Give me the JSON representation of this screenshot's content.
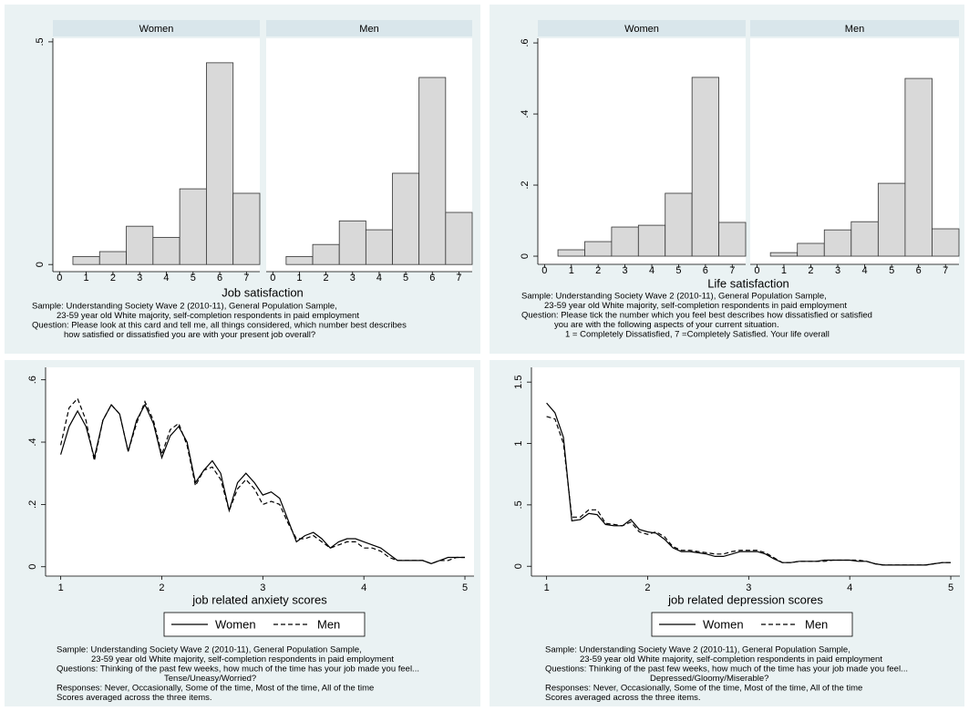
{
  "chart_data": [
    {
      "type": "histogram",
      "xlabel": "Job satisfaction",
      "bins": [
        0.5,
        1.5,
        2.5,
        3.5,
        4.5,
        5.5,
        6.5,
        7.5
      ],
      "facets": [
        {
          "name": "Women",
          "color": "#d9d9d9",
          "values": [
            0.018,
            0.029,
            0.086,
            0.061,
            0.17,
            0.453,
            0.16
          ]
        },
        {
          "name": "Men",
          "color": "#d9d9d9",
          "values": [
            0.018,
            0.045,
            0.098,
            0.078,
            0.205,
            0.42,
            0.117
          ]
        }
      ],
      "xlim": [
        -0.25,
        7.5
      ],
      "xticks": [
        0,
        1,
        2,
        3,
        4,
        5,
        6,
        7
      ],
      "ylim": [
        -0.016,
        0.508
      ],
      "yticks": [
        0,
        {
          "value": 0.5,
          "label": ".5"
        }
      ],
      "notes": [
        "Sample: Understanding Society Wave 2 (2010-11), General Population Sample,",
        "23-59 year old White majority, self-completion respondents in paid employment",
        "Question: Please look at this card and tell me, all things considered, which number best describes",
        "how satisfied or dissatisfied you are with your present job overall?"
      ]
    },
    {
      "type": "histogram",
      "xlabel": "Life satisfaction",
      "bins": [
        0.5,
        1.5,
        2.5,
        3.5,
        4.5,
        5.5,
        6.5,
        7.5
      ],
      "facets": [
        {
          "name": "Women",
          "color": "#d9d9d9",
          "values": [
            0.018,
            0.041,
            0.082,
            0.087,
            0.177,
            0.503,
            0.095
          ]
        },
        {
          "name": "Men",
          "color": "#d9d9d9",
          "values": [
            0.01,
            0.036,
            0.074,
            0.097,
            0.205,
            0.5,
            0.077
          ]
        }
      ],
      "xlim": [
        -0.25,
        7.5
      ],
      "xticks": [
        0,
        1,
        2,
        3,
        4,
        5,
        6,
        7
      ],
      "ylim": [
        -0.023,
        0.613
      ],
      "yticks": [
        0,
        {
          "value": 0.2,
          "label": ".2"
        },
        {
          "value": 0.4,
          "label": ".4"
        },
        {
          "value": 0.6,
          "label": ".6"
        }
      ],
      "notes": [
        "Sample: Understanding Society Wave 2 (2010-11), General Population Sample,",
        "23-59 year old White majority, self-completion respondents in paid employment",
        "Question: Please tick the number which you feel best describes how dissatisfied or satisfied",
        "you are with the following aspects of your current situation.",
        "1 = Completely Dissatisfied, 7 =Completely Satisfied. Your life overall"
      ]
    },
    {
      "type": "line",
      "xlabel": "job related anxiety scores",
      "x": [
        1,
        1.083,
        1.167,
        1.25,
        1.333,
        1.417,
        1.5,
        1.583,
        1.667,
        1.75,
        1.833,
        1.917,
        2,
        2.083,
        2.167,
        2.25,
        2.333,
        2.417,
        2.5,
        2.583,
        2.667,
        2.75,
        2.833,
        2.917,
        3,
        3.083,
        3.167,
        3.25,
        3.333,
        3.417,
        3.5,
        3.583,
        3.667,
        3.75,
        3.833,
        3.917,
        4,
        4.083,
        4.167,
        4.25,
        4.333,
        4.417,
        4.5,
        4.583,
        4.667,
        4.75,
        4.833,
        4.917,
        5
      ],
      "series": [
        {
          "name": "Women",
          "color": "#000000",
          "dash": "solid",
          "values": [
            0.36,
            0.45,
            0.5,
            0.45,
            0.35,
            0.47,
            0.52,
            0.49,
            0.37,
            0.47,
            0.52,
            0.46,
            0.35,
            0.42,
            0.45,
            0.4,
            0.27,
            0.31,
            0.34,
            0.3,
            0.18,
            0.27,
            0.3,
            0.27,
            0.23,
            0.24,
            0.22,
            0.15,
            0.08,
            0.1,
            0.11,
            0.09,
            0.06,
            0.08,
            0.09,
            0.09,
            0.08,
            0.07,
            0.06,
            0.04,
            0.02,
            0.02,
            0.02,
            0.02,
            0.01,
            0.02,
            0.03,
            0.03,
            0.03
          ]
        },
        {
          "name": "Men",
          "color": "#000000",
          "dash": "dashed",
          "values": [
            0.39,
            0.51,
            0.54,
            0.47,
            0.34,
            0.47,
            0.52,
            0.49,
            0.37,
            0.46,
            0.53,
            0.47,
            0.36,
            0.44,
            0.46,
            0.39,
            0.26,
            0.31,
            0.32,
            0.28,
            0.18,
            0.25,
            0.28,
            0.25,
            0.2,
            0.21,
            0.2,
            0.14,
            0.09,
            0.09,
            0.1,
            0.08,
            0.06,
            0.07,
            0.08,
            0.08,
            0.06,
            0.06,
            0.05,
            0.03,
            0.02,
            0.02,
            0.02,
            0.02,
            0.01,
            0.02,
            0.02,
            0.03,
            0.03
          ]
        }
      ],
      "xlim": [
        0.85,
        5.09
      ],
      "xticks": [
        1,
        2,
        3,
        4,
        5
      ],
      "ylim": [
        -0.03,
        0.64
      ],
      "yticks": [
        0,
        {
          "value": 0.2,
          "label": ".2"
        },
        {
          "value": 0.4,
          "label": ".4"
        },
        {
          "value": 0.6,
          "label": ".6"
        }
      ],
      "notes": [
        "Sample: Understanding Society Wave 2 (2010-11), General Population Sample,",
        "23-59 year old White majority, self-completion respondents in paid employment",
        "Questions: Thinking of the past few weeks, how much of the time has your job made you feel...",
        "Tense/Uneasy/Worried?",
        "Responses: Never, Occasionally, Some of the time, Most of the time, All of the time",
        "Scores averaged across the three items."
      ]
    },
    {
      "type": "line",
      "xlabel": "job related depression scores",
      "x": [
        1,
        1.083,
        1.167,
        1.25,
        1.333,
        1.417,
        1.5,
        1.583,
        1.667,
        1.75,
        1.833,
        1.917,
        2,
        2.083,
        2.167,
        2.25,
        2.333,
        2.417,
        2.5,
        2.583,
        2.667,
        2.75,
        2.833,
        2.917,
        3,
        3.083,
        3.167,
        3.25,
        3.333,
        3.417,
        3.5,
        3.583,
        3.667,
        3.75,
        3.833,
        3.917,
        4,
        4.083,
        4.167,
        4.25,
        4.333,
        4.417,
        4.5,
        4.583,
        4.667,
        4.75,
        4.833,
        4.917,
        5
      ],
      "series": [
        {
          "name": "Women",
          "color": "#000000",
          "dash": "solid",
          "values": [
            1.33,
            1.25,
            1.05,
            0.37,
            0.38,
            0.43,
            0.42,
            0.34,
            0.33,
            0.33,
            0.38,
            0.3,
            0.28,
            0.27,
            0.22,
            0.15,
            0.12,
            0.12,
            0.11,
            0.1,
            0.08,
            0.08,
            0.1,
            0.12,
            0.12,
            0.12,
            0.1,
            0.06,
            0.03,
            0.03,
            0.04,
            0.04,
            0.04,
            0.05,
            0.05,
            0.05,
            0.05,
            0.04,
            0.04,
            0.02,
            0.01,
            0.01,
            0.01,
            0.01,
            0.01,
            0.01,
            0.02,
            0.03,
            0.03
          ]
        },
        {
          "name": "Men",
          "color": "#000000",
          "dash": "dashed",
          "values": [
            1.22,
            1.2,
            1.0,
            0.4,
            0.4,
            0.46,
            0.46,
            0.35,
            0.34,
            0.33,
            0.36,
            0.28,
            0.26,
            0.28,
            0.24,
            0.16,
            0.13,
            0.13,
            0.12,
            0.11,
            0.1,
            0.1,
            0.12,
            0.13,
            0.13,
            0.13,
            0.11,
            0.07,
            0.03,
            0.03,
            0.04,
            0.04,
            0.04,
            0.04,
            0.05,
            0.05,
            0.05,
            0.05,
            0.04,
            0.02,
            0.01,
            0.01,
            0.01,
            0.01,
            0.01,
            0.01,
            0.02,
            0.03,
            0.03
          ]
        }
      ],
      "xlim": [
        0.85,
        5.09
      ],
      "xticks": [
        1,
        2,
        3,
        4,
        5
      ],
      "ylim": [
        -0.08,
        1.62
      ],
      "yticks": [
        0,
        {
          "value": 0.5,
          "label": ".5"
        },
        1,
        1.5
      ],
      "notes": [
        "Sample: Understanding Society Wave 2 (2010-11), General Population Sample,",
        "23-59 year old White majority, self-completion respondents in paid employment",
        "Questions: Thinking of the past few weeks, how much of the time has your job made you feel...",
        "Depressed/Gloomy/Miserable?",
        "Responses: Never, Occasionally, Some of the time, Most of the time, All of the time",
        "Scores averaged across the three items."
      ]
    }
  ]
}
